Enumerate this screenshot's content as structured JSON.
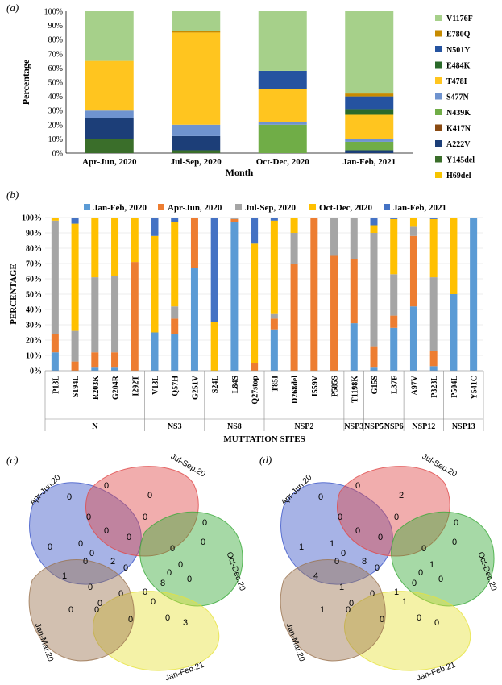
{
  "panel_labels": {
    "a": "(a)",
    "b": "(b)",
    "c": "(c)",
    "d": "(d)"
  },
  "chart_data": [
    {
      "type": "bar",
      "stacked": true,
      "ylabel": "Percentage",
      "xlabel": "Month",
      "ylim": [
        0,
        100
      ],
      "yticks": [
        "0%",
        "10%",
        "20%",
        "30%",
        "40%",
        "50%",
        "60%",
        "70%",
        "80%",
        "90%",
        "100%"
      ],
      "grid": false,
      "legend_position": "right",
      "categories": [
        "Apr-Jun, 2020",
        "Jul-Sep, 2020",
        "Oct-Dec, 2020",
        "Jan-Feb, 2021"
      ],
      "series": [
        {
          "name": "H69del",
          "color": "#f6c400",
          "values": [
            0,
            0,
            0,
            0
          ]
        },
        {
          "name": "Y145del",
          "color": "#3a6e2a",
          "values": [
            10,
            2,
            0,
            0
          ]
        },
        {
          "name": "A222V",
          "color": "#1c3e78",
          "values": [
            15,
            10,
            0,
            2
          ]
        },
        {
          "name": "K417N",
          "color": "#8a4a12",
          "values": [
            0,
            0,
            0,
            0
          ]
        },
        {
          "name": "N439K",
          "color": "#70ad47",
          "values": [
            0,
            0,
            20,
            6
          ]
        },
        {
          "name": "S477N",
          "color": "#6f93cf",
          "values": [
            5,
            8,
            2,
            2
          ]
        },
        {
          "name": "T478I",
          "color": "#ffc51f",
          "values": [
            35,
            65,
            23,
            17
          ]
        },
        {
          "name": "E484K",
          "color": "#2a6a2a",
          "values": [
            0,
            0,
            0,
            4
          ]
        },
        {
          "name": "N501Y",
          "color": "#2553a0",
          "values": [
            0,
            0,
            13,
            9
          ]
        },
        {
          "name": "E780Q",
          "color": "#c78b00",
          "values": [
            0,
            1,
            0,
            2
          ]
        },
        {
          "name": "V1176F",
          "color": "#a6d08a",
          "values": [
            35,
            14,
            42,
            58
          ]
        }
      ]
    },
    {
      "type": "bar",
      "stacked": true,
      "ylabel": "PERCENTAGE",
      "xlabel": "MUTTATION SITES",
      "ylim": [
        0,
        100
      ],
      "yticks": [
        "0%",
        "10%",
        "20%",
        "30%",
        "40%",
        "50%",
        "60%",
        "70%",
        "80%",
        "90%",
        "100%"
      ],
      "legend_position": "top",
      "categories": [
        "P13L",
        "S194L",
        "R203K",
        "G204R",
        "I292T",
        "V13L",
        "Q57H",
        "G251V",
        "S24L",
        "L84S",
        "Q27stop",
        "T85I",
        "D268del",
        "I559V",
        "P585S",
        "T1198K",
        "G15S",
        "L37F",
        "A97V",
        "P323L",
        "P504L",
        "Y541C"
      ],
      "groups": [
        {
          "label": "N",
          "count": 5
        },
        {
          "label": "NS3",
          "count": 3
        },
        {
          "label": "NS8",
          "count": 3
        },
        {
          "label": "NSP2",
          "count": 4
        },
        {
          "label": "NSP3",
          "count": 1
        },
        {
          "label": "NSP5",
          "count": 1
        },
        {
          "label": "NSP6",
          "count": 1
        },
        {
          "label": "NSP12",
          "count": 2
        },
        {
          "label": "NSP13",
          "count": 2
        }
      ],
      "series": [
        {
          "name": "Jan-Feb, 2020",
          "color": "#5b9bd5",
          "values": [
            12,
            0,
            2,
            2,
            0,
            25,
            24,
            67,
            0,
            97,
            0,
            27,
            0,
            0,
            0,
            31,
            2,
            28,
            42,
            3,
            50,
            100
          ]
        },
        {
          "name": "Apr-Jun, 2020",
          "color": "#ed7d31",
          "values": [
            12,
            6,
            10,
            10,
            71,
            0,
            10,
            33,
            0,
            2,
            5,
            7,
            70,
            100,
            75,
            42,
            14,
            8,
            46,
            10,
            0,
            0
          ]
        },
        {
          "name": "Jul-Sep, 2020",
          "color": "#a5a5a5",
          "values": [
            74,
            20,
            49,
            50,
            0,
            0,
            8,
            0,
            0,
            1,
            0,
            3,
            20,
            0,
            25,
            27,
            74,
            27,
            6,
            48,
            0,
            0
          ]
        },
        {
          "name": "Oct-Dec, 2020",
          "color": "#ffc000",
          "values": [
            2,
            70,
            39,
            38,
            29,
            63,
            55,
            0,
            32,
            0,
            78,
            61,
            10,
            0,
            0,
            0,
            5,
            36,
            6,
            38,
            50,
            0
          ]
        },
        {
          "name": "Jan-Feb, 2021",
          "color": "#4472c4",
          "values": [
            0,
            4,
            0,
            0,
            0,
            12,
            3,
            0,
            68,
            0,
            17,
            2,
            0,
            0,
            0,
            0,
            5,
            1,
            0,
            1,
            0,
            0
          ]
        }
      ]
    }
  ],
  "venn_c": {
    "sets": [
      {
        "name": "Apr-Jun.20",
        "color": "#3c56c8"
      },
      {
        "name": "Jul-Sep.20",
        "color": "#e04a4a"
      },
      {
        "name": "Oct-Dec.20",
        "color": "#3aaa3a"
      },
      {
        "name": "Jan-Feb.21",
        "color": "#e6e23c"
      },
      {
        "name": "Jan-Mar.20",
        "color": "#9b7450"
      }
    ],
    "counts": [
      "0",
      "0",
      "0",
      "3",
      "0",
      "0",
      "0",
      "0",
      "0",
      "1",
      "0",
      "0",
      "8",
      "0",
      "0",
      "0",
      "0",
      "0",
      "2",
      "0",
      "0",
      "0",
      "0",
      "0",
      "0",
      "0",
      "0",
      "0",
      "0",
      "0",
      "0"
    ]
  },
  "venn_d": {
    "sets": [
      {
        "name": "Apr-Jun.20",
        "color": "#3c56c8"
      },
      {
        "name": "Jul-Sep.20",
        "color": "#e04a4a"
      },
      {
        "name": "Oct-Dec.20",
        "color": "#3aaa3a"
      },
      {
        "name": "Jan-Feb.21",
        "color": "#e6e23c"
      },
      {
        "name": "Jan-Mar.20",
        "color": "#9b7450"
      }
    ],
    "counts": [
      "1",
      "0",
      "0",
      "0",
      "1",
      "0",
      "2",
      "0",
      "0",
      "4",
      "0",
      "0",
      "0",
      "0",
      "0",
      "0",
      "0",
      "1",
      "8",
      "1",
      "0",
      "1",
      "0",
      "1",
      "0",
      "0",
      "0",
      "1",
      "0",
      "0",
      "0"
    ]
  }
}
